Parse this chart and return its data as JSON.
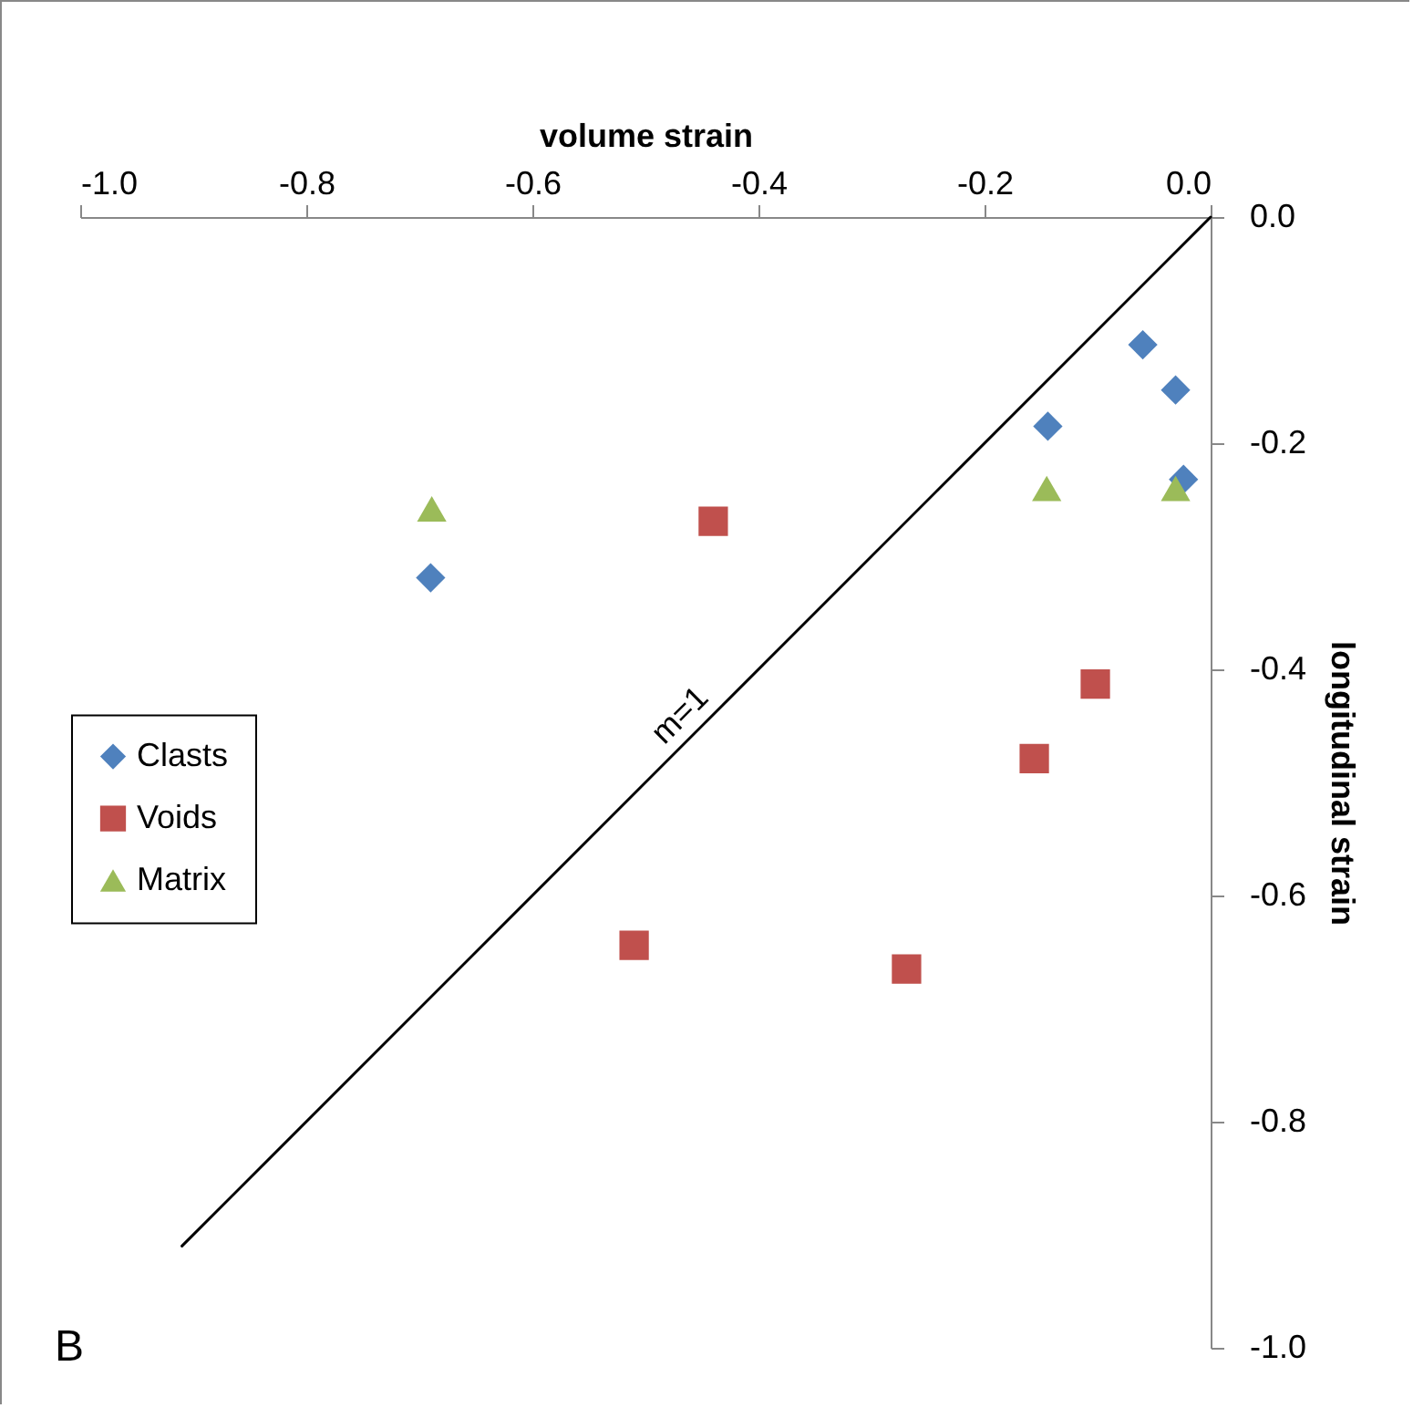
{
  "chart_data": {
    "type": "scatter",
    "xlabel": "volume strain",
    "ylabel": "longitudinal strain",
    "xlim": [
      -1,
      0
    ],
    "ylim": [
      -1,
      0
    ],
    "xticks": [
      {
        "value": -1,
        "label": "-1.0"
      },
      {
        "value": -0.8,
        "label": "-0.8"
      },
      {
        "value": -0.6,
        "label": "-0.6"
      },
      {
        "value": -0.4,
        "label": "-0.4"
      },
      {
        "value": -0.2,
        "label": "-0.2"
      },
      {
        "value": 0,
        "label": "0.0"
      }
    ],
    "yticks": [
      {
        "value": 0,
        "label": "0.0"
      },
      {
        "value": -0.2,
        "label": "-0.2"
      },
      {
        "value": -0.4,
        "label": "-0.4"
      },
      {
        "value": -0.6,
        "label": "-0.6"
      },
      {
        "value": -0.8,
        "label": "-0.8"
      },
      {
        "value": -1,
        "label": "-1.0"
      }
    ],
    "grid": false,
    "legend": "left",
    "series": [
      {
        "name": "Clasts",
        "color": "#4f81bd",
        "marker": "diamond",
        "x": [
          -0.06,
          -0.031,
          -0.144,
          -0.024,
          -0.69
        ],
        "values": [
          -0.113,
          -0.153,
          -0.185,
          -0.232,
          -0.319
        ]
      },
      {
        "name": "Voids",
        "color": "#c0504d",
        "marker": "square",
        "x": [
          -0.44,
          -0.102,
          -0.156,
          -0.51,
          -0.269
        ],
        "values": [
          -0.269,
          -0.413,
          -0.479,
          -0.644,
          -0.665
        ]
      },
      {
        "name": "Matrix",
        "color": "#9bbb59",
        "marker": "triangle",
        "x": [
          -0.689,
          -0.145,
          -0.031
        ],
        "values": [
          -0.258,
          -0.24,
          -0.24
        ]
      },
      {
        "type": "line",
        "color": "#000000",
        "marker": "none",
        "x": [
          0,
          -0.91
        ],
        "values": [
          0,
          -0.91
        ]
      }
    ],
    "annotations": [
      "m=1",
      "B"
    ]
  }
}
